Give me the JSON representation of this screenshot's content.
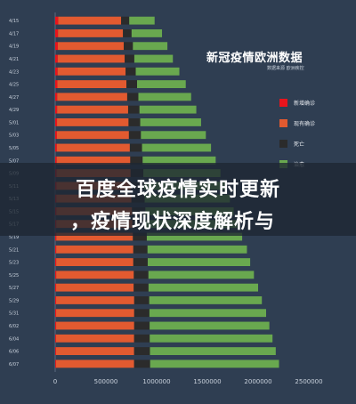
{
  "banner": {
    "line1": "百度全球疫情实时更新",
    "line2": "，疫情现状深度解析与"
  },
  "chart_data": {
    "type": "bar",
    "orientation": "horizontal",
    "stacked": true,
    "title": "新冠疫情欧洲数据",
    "subtitle": "数据来源 欧洲疾控",
    "xlim": [
      0,
      2500000
    ],
    "xticks": [
      0,
      500000,
      1000000,
      1500000,
      2000000,
      2500000
    ],
    "xtick_labels": [
      "0",
      "500000",
      "1000000",
      "1500000",
      "2000000",
      "2500000"
    ],
    "legend_position": "right",
    "categories": [
      "4/15",
      "4/17",
      "4/19",
      "4/21",
      "4/23",
      "4/25",
      "4/27",
      "4/29",
      "5/01",
      "5/03",
      "5/05",
      "5/07",
      "5/09",
      "5/11",
      "5/13",
      "5/15",
      "5/17",
      "5/19",
      "5/21",
      "5/23",
      "5/25",
      "5/27",
      "5/29",
      "5/31",
      "6/02",
      "6/04",
      "6/06",
      "6/07"
    ],
    "series": [
      {
        "name": "新增确诊",
        "color": "#e8141c",
        "values": [
          30000,
          28000,
          26000,
          25000,
          24000,
          22000,
          20000,
          19000,
          18000,
          17000,
          16000,
          15000,
          14000,
          13000,
          12000,
          12000,
          11000,
          11000,
          10000,
          10000,
          10000,
          9000,
          9000,
          9000,
          9000,
          8000,
          8000,
          8000
        ]
      },
      {
        "name": "现有确诊",
        "color": "#e25a30",
        "values": [
          620000,
          640000,
          650000,
          660000,
          670000,
          680000,
          690000,
          700000,
          705000,
          710000,
          720000,
          725000,
          730000,
          735000,
          740000,
          745000,
          750000,
          755000,
          760000,
          760000,
          765000,
          765000,
          770000,
          770000,
          770000,
          770000,
          770000,
          770000
        ]
      },
      {
        "name": "死亡",
        "color": "#2b2b2b",
        "values": [
          80000,
          85000,
          90000,
          95000,
          100000,
          105000,
          110000,
          112000,
          115000,
          118000,
          120000,
          122000,
          125000,
          127000,
          130000,
          132000,
          135000,
          137000,
          140000,
          142000,
          144000,
          146000,
          148000,
          150000,
          152000,
          154000,
          156000,
          158000
        ]
      },
      {
        "name": "治愈",
        "color": "#69a84f",
        "values": [
          250000,
          300000,
          340000,
          380000,
          430000,
          480000,
          520000,
          560000,
          600000,
          640000,
          680000,
          720000,
          760000,
          800000,
          840000,
          870000,
          900000,
          940000,
          980000,
          1010000,
          1040000,
          1080000,
          1110000,
          1150000,
          1180000,
          1210000,
          1240000,
          1270000
        ]
      }
    ]
  }
}
